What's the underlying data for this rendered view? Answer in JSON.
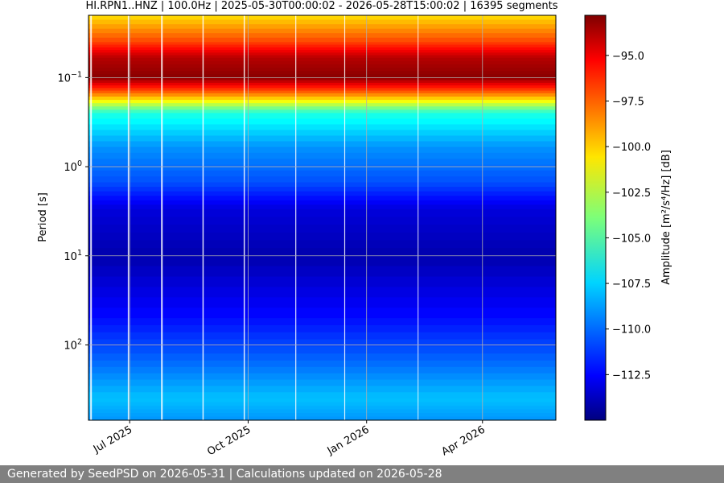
{
  "chart_data": {
    "type": "heatmap",
    "title": "HI.RPN1..HNZ | 100.0Hz | 2025-05-30T00:00:02 - 2026-05-28T15:00:02 | 16395 segments",
    "xlabel": "",
    "ylabel": "Period [s]",
    "x_range": [
      "2025-05-30",
      "2026-05-28"
    ],
    "x_ticks": [
      {
        "date": "2025-07-01",
        "label": "Jul 2025"
      },
      {
        "date": "2025-10-01",
        "label": "Oct 2025"
      },
      {
        "date": "2026-01-01",
        "label": "Jan 2026"
      },
      {
        "date": "2026-04-01",
        "label": "Apr 2026"
      }
    ],
    "y_scale": "log",
    "y_inverted": true,
    "y_range": [
      0.02,
      700
    ],
    "y_ticks": [
      {
        "value": 0.1,
        "base": "10",
        "exp": "−1"
      },
      {
        "value": 1,
        "base": "10",
        "exp": "0"
      },
      {
        "value": 10,
        "base": "10",
        "exp": "1"
      },
      {
        "value": 100,
        "base": "10",
        "exp": "2"
      }
    ],
    "grid": true,
    "colormap": "jet",
    "colorbar": {
      "label": "Amplitude [m²/s⁴/Hz] [dB]",
      "range": [
        -115,
        -92.8
      ],
      "ticks": [
        {
          "value": -95.0,
          "label": "−95.0"
        },
        {
          "value": -97.5,
          "label": "−97.5"
        },
        {
          "value": -100.0,
          "label": "−100.0"
        },
        {
          "value": -102.5,
          "label": "−102.5"
        },
        {
          "value": -105.0,
          "label": "−105.0"
        },
        {
          "value": -107.5,
          "label": "−107.5"
        },
        {
          "value": -110.0,
          "label": "−110.0"
        },
        {
          "value": -112.5,
          "label": "−112.5"
        }
      ]
    },
    "amplitude_profile": [
      {
        "period": 0.02,
        "db": -100.5
      },
      {
        "period": 0.04,
        "db": -97
      },
      {
        "period": 0.06,
        "db": -94
      },
      {
        "period": 0.1,
        "db": -93
      },
      {
        "period": 0.15,
        "db": -98
      },
      {
        "period": 0.25,
        "db": -106
      },
      {
        "period": 0.6,
        "db": -109
      },
      {
        "period": 1.5,
        "db": -110.5
      },
      {
        "period": 3,
        "db": -113
      },
      {
        "period": 10,
        "db": -114
      },
      {
        "period": 50,
        "db": -112
      },
      {
        "period": 150,
        "db": -110
      },
      {
        "period": 400,
        "db": -108
      },
      {
        "period": 700,
        "db": -109
      }
    ]
  },
  "footer": {
    "text": "Generated by SeedPSD on 2026-05-31 | Calculations updated on 2026-05-28"
  }
}
